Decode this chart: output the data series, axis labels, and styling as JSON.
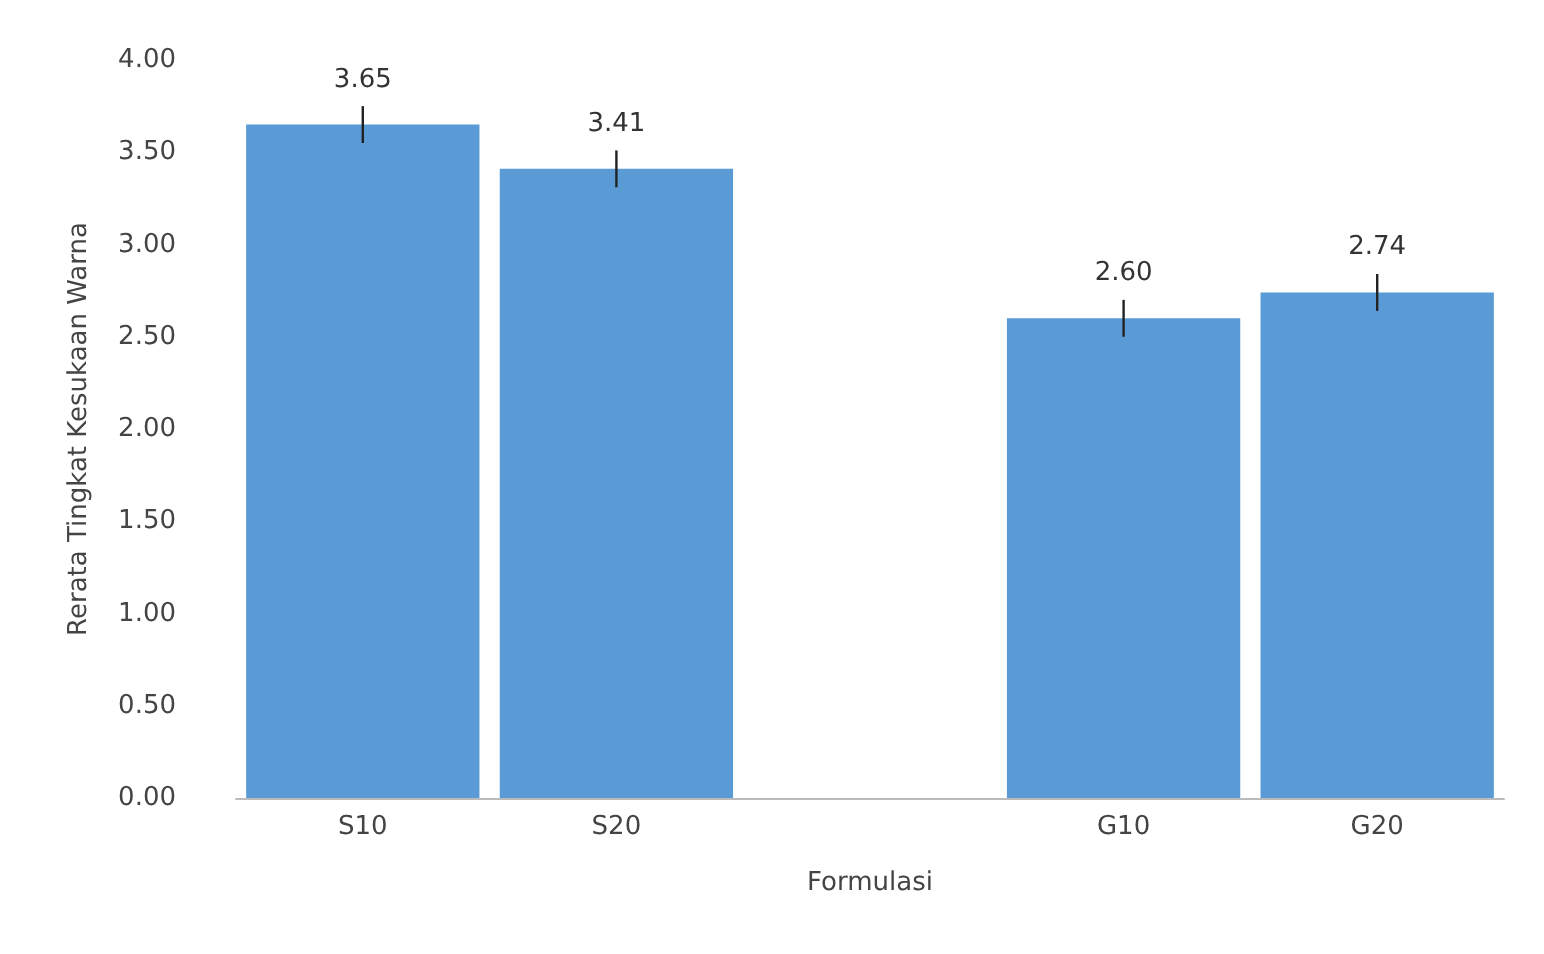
{
  "chart_data": {
    "type": "bar",
    "xlabel": "Formulasi",
    "ylabel": "Rerata Tingkat Kesukaan Warna",
    "categories": [
      "S10",
      "S20",
      null,
      "G10",
      "G20"
    ],
    "values": [
      3.65,
      3.41,
      null,
      2.6,
      2.74
    ],
    "value_labels": [
      "3.65",
      "3.41",
      null,
      "2.60",
      "2.74"
    ],
    "errors": [
      0.1,
      0.1,
      null,
      0.1,
      0.1
    ],
    "color": "#5b9bd5",
    "ylim": [
      0,
      4
    ],
    "yticks": [
      {
        "value": 0,
        "label": "0.00"
      },
      {
        "value": 0.5,
        "label": "0.50"
      },
      {
        "value": 1,
        "label": "1.00"
      },
      {
        "value": 1.5,
        "label": "1.50"
      },
      {
        "value": 2,
        "label": "2.00"
      },
      {
        "value": 2.5,
        "label": "2.50"
      },
      {
        "value": 3,
        "label": "3.00"
      },
      {
        "value": 3.5,
        "label": "3.50"
      },
      {
        "value": 4,
        "label": "4.00"
      }
    ],
    "grid": false
  }
}
